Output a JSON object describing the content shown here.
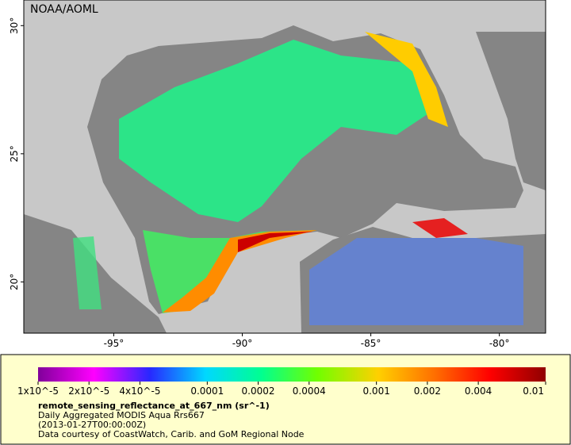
{
  "map": {
    "source": "NOAA/AOML",
    "lon_ticks": [
      {
        "value": -95,
        "label": "-95°"
      },
      {
        "value": -90,
        "label": "-90°"
      },
      {
        "value": -85,
        "label": "-85°"
      },
      {
        "value": -80,
        "label": "-80°"
      }
    ],
    "lat_ticks": [
      {
        "value": 30,
        "label": "30°"
      },
      {
        "value": 25,
        "label": "25°"
      },
      {
        "value": 20,
        "label": "20°"
      }
    ],
    "lon_range": [
      -98.5,
      -78.2
    ],
    "lat_range": [
      31,
      18
    ]
  },
  "colorbar": {
    "scale": "log",
    "range": [
      1e-05,
      0.01
    ],
    "ticks": [
      {
        "value": 1e-05,
        "label": "1x10^-5"
      },
      {
        "value": 2e-05,
        "label": "2x10^-5"
      },
      {
        "value": 4e-05,
        "label": "4x10^-5"
      },
      0.0001,
      0.0002,
      0.0004,
      0.001,
      0.002,
      0.004,
      0.01
    ],
    "variable": "remote_sensing_reflectance_at_667_nm (sr^-1)",
    "lines": [
      "Daily Aggregated MODIS Aqua Rrs667",
      "(2013-01-27T00:00:00Z)",
      "Data courtesy of CoastWatch, Carib. and GoM Regional Node"
    ]
  }
}
